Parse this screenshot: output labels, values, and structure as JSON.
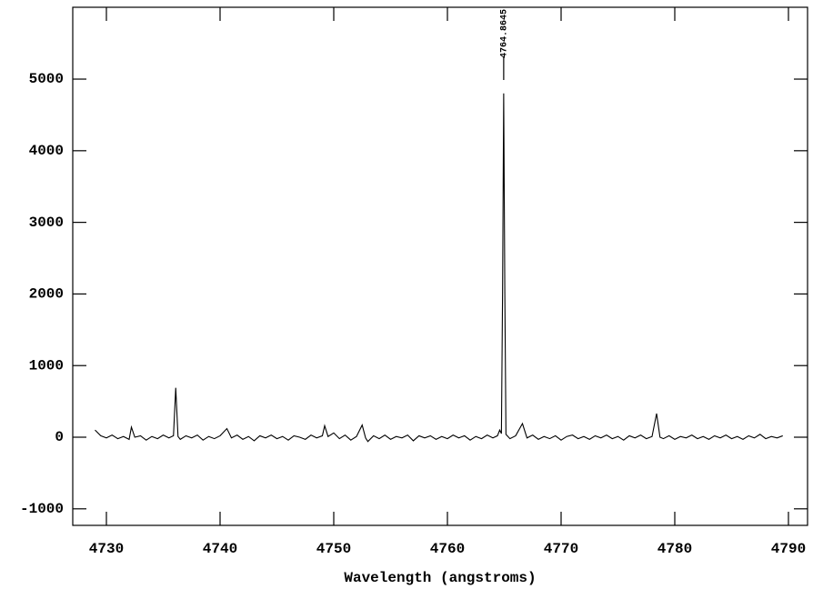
{
  "chart_data": {
    "type": "line",
    "xlabel": "Wavelength (angstroms)",
    "annotation": "4764.8645",
    "color": "#000000",
    "xlim": [
      4727.04,
      4791.68
    ],
    "ylim": [
      -1231,
      6003
    ],
    "xticks": [
      4730,
      4740,
      4750,
      4760,
      4770,
      4780,
      4790
    ],
    "yticks": [
      -1000,
      0,
      1000,
      2000,
      3000,
      4000,
      5000
    ],
    "x": [
      4729.0,
      4729.5,
      4730.0,
      4730.5,
      4731.0,
      4731.5,
      4732.0,
      4732.2,
      4732.5,
      4733.0,
      4733.5,
      4734.0,
      4734.5,
      4735.0,
      4735.5,
      4735.9,
      4736.1,
      4736.3,
      4736.5,
      4737.0,
      4737.5,
      4738.0,
      4738.5,
      4739.0,
      4739.5,
      4740.0,
      4740.6,
      4741.0,
      4741.5,
      4742.0,
      4742.5,
      4743.0,
      4743.5,
      4744.0,
      4744.5,
      4745.0,
      4745.5,
      4746.0,
      4746.5,
      4747.0,
      4747.5,
      4748.0,
      4748.5,
      4749.0,
      4749.2,
      4749.5,
      4750.0,
      4750.5,
      4751.0,
      4751.5,
      4752.0,
      4752.5,
      4752.8,
      4753.0,
      4753.5,
      4754.0,
      4754.5,
      4755.0,
      4755.5,
      4756.0,
      4756.5,
      4757.0,
      4757.5,
      4758.0,
      4758.5,
      4759.0,
      4759.5,
      4760.0,
      4760.5,
      4761.0,
      4761.5,
      4762.0,
      4762.5,
      4763.0,
      4763.5,
      4764.0,
      4764.4,
      4764.6,
      4764.75,
      4764.85,
      4764.95,
      4765.05,
      4765.15,
      4765.5,
      4766.0,
      4766.6,
      4767.0,
      4767.5,
      4768.0,
      4768.5,
      4769.0,
      4769.5,
      4770.0,
      4770.5,
      4771.0,
      4771.5,
      4772.0,
      4772.5,
      4773.0,
      4773.5,
      4774.0,
      4774.5,
      4775.0,
      4775.5,
      4776.0,
      4776.5,
      4777.0,
      4777.5,
      4778.0,
      4778.4,
      4778.7,
      4779.0,
      4779.5,
      4780.0,
      4780.5,
      4781.0,
      4781.5,
      4782.0,
      4782.5,
      4783.0,
      4783.5,
      4784.0,
      4784.5,
      4785.0,
      4785.5,
      4786.0,
      4786.5,
      4787.0,
      4787.5,
      4788.0,
      4788.5,
      4789.0,
      4789.5
    ],
    "values": [
      100,
      20,
      -10,
      30,
      -20,
      10,
      -30,
      140,
      0,
      20,
      -40,
      10,
      -20,
      30,
      -10,
      20,
      690,
      10,
      -30,
      20,
      -10,
      30,
      -40,
      10,
      -20,
      20,
      120,
      -10,
      30,
      -30,
      10,
      -50,
      20,
      -10,
      30,
      -20,
      10,
      -40,
      20,
      0,
      -30,
      30,
      -10,
      20,
      160,
      10,
      60,
      -20,
      30,
      -40,
      10,
      170,
      -10,
      -60,
      20,
      -20,
      30,
      -30,
      10,
      -10,
      30,
      -50,
      20,
      -10,
      20,
      -30,
      10,
      -20,
      30,
      -10,
      20,
      -40,
      10,
      -20,
      30,
      -10,
      20,
      100,
      50,
      2000,
      4800,
      2000,
      40,
      -20,
      20,
      190,
      -10,
      30,
      -30,
      10,
      -20,
      20,
      -40,
      10,
      30,
      -20,
      10,
      -30,
      20,
      -10,
      30,
      -20,
      10,
      -40,
      20,
      -10,
      30,
      -20,
      10,
      330,
      0,
      -20,
      20,
      -30,
      10,
      -10,
      30,
      -20,
      10,
      -30,
      20,
      -10,
      30,
      -20,
      10,
      -30,
      20,
      -10,
      40,
      -20,
      10,
      -10,
      20
    ]
  }
}
